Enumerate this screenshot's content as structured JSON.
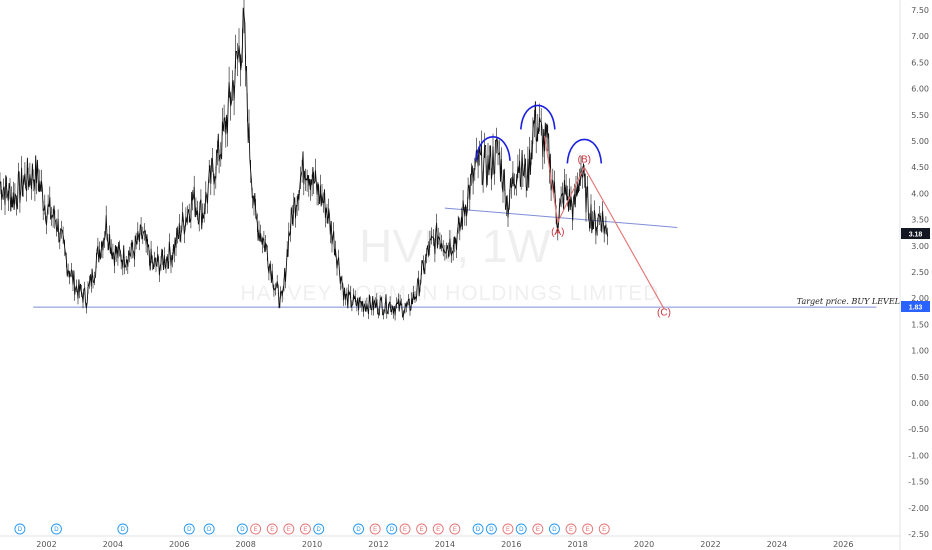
{
  "chart_data": {
    "type": "line",
    "symbol_watermark": "HVN, 1W",
    "name_watermark": "HARVEY NORMAN HOLDINGS LIMITED",
    "ylim": [
      -2.6,
      7.6
    ],
    "y_ticks": [
      7.5,
      7.0,
      6.5,
      6.0,
      5.5,
      5.0,
      4.5,
      4.0,
      3.5,
      3.0,
      2.5,
      2.0,
      1.5,
      1.0,
      0.5,
      0.0,
      -0.5,
      -1.0,
      -1.5,
      -2.0,
      -2.5
    ],
    "y_tick_labels": [
      "7.50",
      "7.00",
      "6.50",
      "6.00",
      "5.50",
      "5.00",
      "4.50",
      "4.00",
      "3.50",
      "3.00",
      "2.50",
      "2.00",
      "1.50",
      "1.00",
      "0.50",
      "0.00",
      "-0.50",
      "-1.00",
      "-1.50",
      "-2.00",
      "-2.50"
    ],
    "x_ticks": [
      2002,
      2004,
      2006,
      2008,
      2010,
      2012,
      2014,
      2016,
      2018,
      2020,
      2022,
      2024,
      2026
    ],
    "x_tick_labels": [
      "2002",
      "2004",
      "2006",
      "2008",
      "2010",
      "2012",
      "2014",
      "2016",
      "2018",
      "2020",
      "2022",
      "2024",
      "2026"
    ],
    "xlim": [
      2000.6,
      2027.0
    ],
    "price_series": {
      "x": [
        2000.6,
        2001.0,
        2001.4,
        2001.7,
        2002.0,
        2002.3,
        2002.6,
        2002.9,
        2003.2,
        2003.5,
        2003.8,
        2004.0,
        2004.3,
        2004.6,
        2004.9,
        2005.2,
        2005.5,
        2005.8,
        2006.1,
        2006.4,
        2006.7,
        2007.0,
        2007.3,
        2007.6,
        2007.8,
        2007.95,
        2008.1,
        2008.3,
        2008.6,
        2008.9,
        2009.1,
        2009.3,
        2009.6,
        2009.8,
        2010.0,
        2010.2,
        2010.4,
        2010.7,
        2011.0,
        2011.3,
        2011.6,
        2012.0,
        2012.3,
        2012.6,
        2012.9,
        2013.2,
        2013.5,
        2013.8,
        2014.1,
        2014.4,
        2014.7,
        2015.0,
        2015.3,
        2015.6,
        2015.9,
        2016.2,
        2016.5,
        2016.7,
        2016.9,
        2017.1,
        2017.4,
        2017.6,
        2017.9,
        2018.1,
        2018.3,
        2018.5,
        2018.7,
        2018.9
      ],
      "y": [
        4.2,
        3.9,
        4.3,
        4.4,
        3.7,
        3.5,
        2.7,
        2.2,
        2.0,
        2.7,
        3.4,
        2.9,
        2.8,
        2.9,
        3.2,
        2.6,
        2.7,
        2.9,
        3.4,
        3.9,
        3.6,
        4.4,
        5.0,
        6.0,
        6.7,
        7.1,
        5.0,
        3.5,
        3.0,
        2.2,
        1.9,
        3.2,
        4.2,
        4.6,
        4.3,
        4.0,
        3.8,
        3.0,
        2.0,
        1.9,
        1.9,
        1.85,
        1.9,
        1.82,
        1.8,
        2.2,
        2.9,
        3.2,
        3.0,
        3.2,
        4.0,
        4.6,
        4.5,
        4.8,
        3.8,
        4.6,
        4.3,
        5.4,
        5.1,
        4.9,
        3.5,
        4.0,
        3.7,
        4.5,
        3.8,
        3.4,
        3.6,
        3.18
      ]
    },
    "last_price": "3.18",
    "target_price": "1.83",
    "target_label": "Target price. BUY LEVEL",
    "support_line": {
      "x": [
        2001.6,
        2027.0
      ],
      "y": [
        1.83,
        1.83
      ]
    },
    "neckline": {
      "x": [
        2014.0,
        2021.0
      ],
      "y": [
        3.72,
        3.35
      ]
    },
    "wave_path": {
      "x": [
        2017.0,
        2017.4,
        2018.2,
        2020.6
      ],
      "y": [
        5.1,
        3.45,
        4.5,
        1.8
      ]
    },
    "wave_labels": [
      {
        "text": "(A)",
        "x": 2017.4,
        "y": 3.28
      },
      {
        "text": "(B)",
        "x": 2018.2,
        "y": 4.67
      },
      {
        "text": "(C)",
        "x": 2020.6,
        "y": 1.75
      }
    ],
    "arcs": [
      {
        "x_center": 2015.45,
        "y": 4.85
      },
      {
        "x_center": 2016.8,
        "y": 5.45
      },
      {
        "x_center": 2018.2,
        "y": 4.8
      }
    ],
    "colors": {
      "price": "#111111",
      "support": "#7f8cd8",
      "neckline": "#7f8cd8",
      "wave": "#e57373",
      "wave_label": "#d0303a",
      "arcs": "#1a1fe0",
      "badge_bg": "#131722",
      "target_badge_bg": "#2962ff",
      "dividend_marker": "#2196f3",
      "earnings_marker": "#e57373"
    },
    "event_markers": [
      {
        "label": "D",
        "x": 2001.2,
        "kind": "dividend"
      },
      {
        "label": "D",
        "x": 2002.3,
        "kind": "dividend"
      },
      {
        "label": "D",
        "x": 2004.3,
        "kind": "dividend"
      },
      {
        "label": "D",
        "x": 2006.3,
        "kind": "dividend"
      },
      {
        "label": "D",
        "x": 2006.9,
        "kind": "dividend"
      },
      {
        "label": "D",
        "x": 2007.9,
        "kind": "dividend"
      },
      {
        "label": "E",
        "x": 2008.3,
        "kind": "earnings"
      },
      {
        "label": "E",
        "x": 2008.8,
        "kind": "earnings"
      },
      {
        "label": "E",
        "x": 2009.3,
        "kind": "earnings"
      },
      {
        "label": "E",
        "x": 2009.8,
        "kind": "earnings"
      },
      {
        "label": "D",
        "x": 2010.2,
        "kind": "dividend"
      },
      {
        "label": "D",
        "x": 2011.4,
        "kind": "dividend"
      },
      {
        "label": "E",
        "x": 2011.9,
        "kind": "earnings"
      },
      {
        "label": "D",
        "x": 2012.4,
        "kind": "dividend"
      },
      {
        "label": "E",
        "x": 2012.8,
        "kind": "earnings"
      },
      {
        "label": "E",
        "x": 2013.3,
        "kind": "earnings"
      },
      {
        "label": "E",
        "x": 2013.8,
        "kind": "earnings"
      },
      {
        "label": "E",
        "x": 2014.3,
        "kind": "earnings"
      },
      {
        "label": "D",
        "x": 2015.0,
        "kind": "dividend"
      },
      {
        "label": "D",
        "x": 2015.4,
        "kind": "dividend"
      },
      {
        "label": "E",
        "x": 2015.9,
        "kind": "earnings"
      },
      {
        "label": "D",
        "x": 2016.3,
        "kind": "dividend"
      },
      {
        "label": "E",
        "x": 2016.8,
        "kind": "earnings"
      },
      {
        "label": "D",
        "x": 2017.3,
        "kind": "dividend"
      },
      {
        "label": "E",
        "x": 2017.8,
        "kind": "earnings"
      },
      {
        "label": "E",
        "x": 2018.3,
        "kind": "earnings"
      },
      {
        "label": "E",
        "x": 2018.8,
        "kind": "earnings"
      }
    ]
  }
}
